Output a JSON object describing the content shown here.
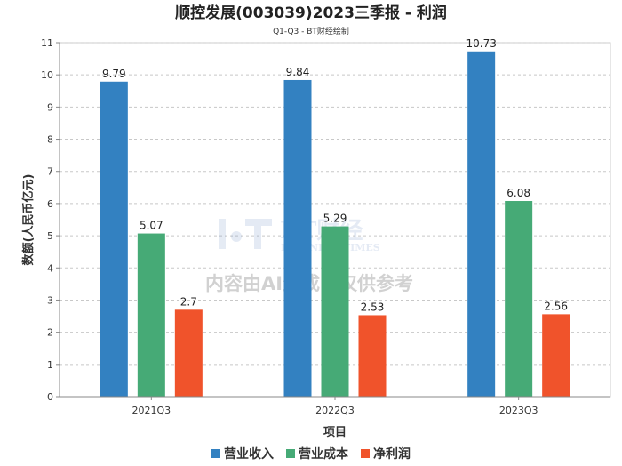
{
  "chart_data": {
    "type": "bar",
    "title": "顺控发展(003039)2023三季报 - 利润",
    "subtitle": "Q1-Q3 - BT财经绘制",
    "xlabel": "项目",
    "ylabel": "数额(人民币亿元)",
    "categories": [
      "2021Q3",
      "2022Q3",
      "2023Q3"
    ],
    "ylim": [
      0,
      11
    ],
    "yticks": [
      0,
      1,
      2,
      3,
      4,
      5,
      6,
      7,
      8,
      9,
      10,
      11
    ],
    "grid": true,
    "legend_position": "bottom",
    "series": [
      {
        "name": "营业收入",
        "values": [
          9.79,
          9.84,
          10.73
        ],
        "labels": [
          "9.79",
          "9.84",
          "10.73"
        ],
        "color": "#3381c1"
      },
      {
        "name": "营业成本",
        "values": [
          5.07,
          5.29,
          6.08
        ],
        "labels": [
          "5.07",
          "5.29",
          "6.08"
        ],
        "color": "#46aa76"
      },
      {
        "name": "净利润",
        "values": [
          2.7,
          2.53,
          2.56
        ],
        "labels": [
          "2.7",
          "2.53",
          "2.56"
        ],
        "color": "#f0532b"
      }
    ]
  },
  "watermark": {
    "brand": "BT财经",
    "brand_sub": "BUSINESS TIMES",
    "notice": "内容由AI生成，仅供参考"
  }
}
